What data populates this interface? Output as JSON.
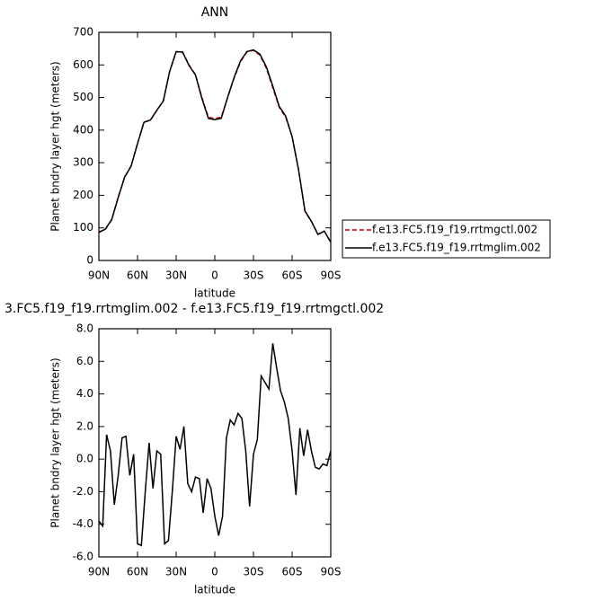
{
  "chart_data": [
    {
      "type": "line",
      "title": "ANN",
      "x_label": "latitude",
      "y_label": "Planet bndry layer hgt (meters)",
      "x": [
        90,
        85,
        80,
        75,
        70,
        65,
        60,
        55,
        50,
        45,
        40,
        35,
        30,
        25,
        20,
        15,
        10,
        5,
        0,
        -5,
        -10,
        -15,
        -20,
        -25,
        -30,
        -35,
        -40,
        -45,
        -50,
        -55,
        -60,
        -65,
        -70,
        -75,
        -80,
        -85,
        -90
      ],
      "series": [
        {
          "name": "f.e13.FC5.f19_f19.rrtmgctl.002",
          "color": "#cc0000",
          "linestyle": "dashed",
          "values": [
            88,
            95,
            125,
            195,
            255,
            290,
            360,
            425,
            430,
            460,
            490,
            580,
            640,
            640,
            600,
            570,
            500,
            440,
            435,
            440,
            500,
            560,
            610,
            640,
            645,
            630,
            590,
            530,
            470,
            440,
            380,
            280,
            150,
            120,
            80,
            90,
            55
          ]
        },
        {
          "name": "f.e13.FC5.f19_f19.rrtmglim.002",
          "color": "#000000",
          "linestyle": "solid",
          "values": [
            86,
            96,
            126,
            193,
            256,
            289,
            358,
            424,
            431,
            461,
            489,
            581,
            641,
            639,
            598,
            569,
            497,
            436,
            432,
            436,
            501,
            562,
            613,
            641,
            646,
            633,
            594,
            535,
            473,
            443,
            380,
            278,
            152,
            120,
            80,
            90,
            56
          ]
        }
      ],
      "xlim": [
        90,
        -90
      ],
      "xticks": [
        {
          "value": 90,
          "label": "90N"
        },
        {
          "value": 60,
          "label": "60N"
        },
        {
          "value": 30,
          "label": "30N"
        },
        0,
        {
          "value": -30,
          "label": "30S"
        },
        {
          "value": -60,
          "label": "60S"
        },
        {
          "value": -90,
          "label": "90S"
        }
      ],
      "ylim": [
        0,
        700
      ],
      "yticks": [
        0,
        100,
        200,
        300,
        400,
        500,
        600,
        700
      ],
      "legend": "outside right"
    },
    {
      "type": "line",
      "title": "3.FC5.f19_f19.rrtmglim.002 - f.e13.FC5.f19_f19.rrtmgctl.002",
      "x_label": "latitude",
      "y_label": "Planet bndry layer hgt (meters)",
      "x": [
        90,
        87,
        84,
        81,
        78,
        75,
        72,
        69,
        66,
        63,
        60,
        57,
        54,
        51,
        48,
        45,
        42,
        39,
        36,
        33,
        30,
        27,
        24,
        21,
        18,
        15,
        12,
        9,
        6,
        3,
        0,
        -3,
        -6,
        -9,
        -12,
        -15,
        -18,
        -21,
        -24,
        -27,
        -30,
        -33,
        -36,
        -39,
        -42,
        -45,
        -48,
        -51,
        -54,
        -57,
        -60,
        -63,
        -66,
        -69,
        -72,
        -75,
        -78,
        -81,
        -84,
        -87,
        -90
      ],
      "values": [
        -3.8,
        -4.1,
        1.5,
        0.5,
        -2.8,
        -1,
        1.3,
        1.4,
        -1,
        0.3,
        -5.2,
        -5.3,
        -2,
        1.0,
        -1.8,
        0.5,
        0.3,
        -5.2,
        -5,
        -2,
        1.4,
        0.6,
        2.0,
        -1.5,
        -2.0,
        -1.1,
        -1.2,
        -3.3,
        -1.2,
        -1.8,
        -3.5,
        -4.7,
        -3.5,
        1.3,
        2.4,
        2.1,
        2.8,
        2.5,
        0.5,
        -2.9,
        0.3,
        1.2,
        5.1,
        4.7,
        4.3,
        7.1,
        5.6,
        4.2,
        3.5,
        2.5,
        0.5,
        -2.2,
        1.9,
        0.2,
        1.8,
        0.5,
        -0.5,
        -0.6,
        -0.3,
        -0.4,
        0.5
      ],
      "color": "#000000",
      "xlim": [
        90,
        -90
      ],
      "xticks": [
        {
          "value": 90,
          "label": "90N"
        },
        {
          "value": 60,
          "label": "60N"
        },
        {
          "value": 30,
          "label": "30N"
        },
        0,
        {
          "value": -30,
          "label": "30S"
        },
        {
          "value": -60,
          "label": "60S"
        },
        {
          "value": -90,
          "label": "90S"
        }
      ],
      "ylim": [
        -6,
        8
      ],
      "yticks": [
        {
          "value": -6,
          "label": "-6.0"
        },
        {
          "value": -4,
          "label": "-4.0"
        },
        {
          "value": -2,
          "label": "-2.0"
        },
        {
          "value": 0,
          "label": "0.0"
        },
        {
          "value": 2,
          "label": "2.0"
        },
        {
          "value": 4,
          "label": "4.0"
        },
        {
          "value": 6,
          "label": "6.0"
        },
        {
          "value": 8,
          "label": "8.0"
        }
      ]
    }
  ]
}
